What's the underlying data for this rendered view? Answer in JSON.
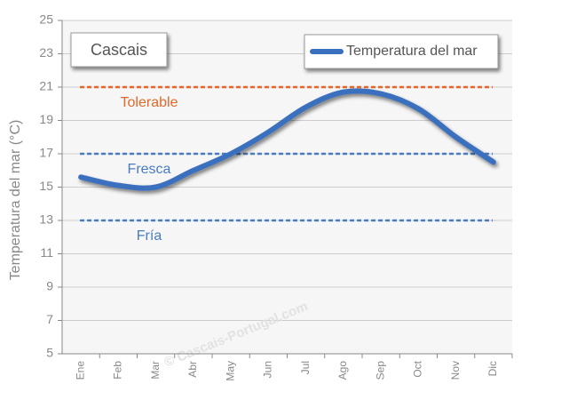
{
  "chart_data": {
    "type": "line",
    "title": "Cascais",
    "y_label": "Temperatura del mar (°C)",
    "watermark": "© Cascais-Portugal.com",
    "categories": [
      "Ene",
      "Feb",
      "Mar",
      "Abr",
      "May",
      "Jun",
      "Jul",
      "Ago",
      "Sep",
      "Oct",
      "Nov",
      "Dic"
    ],
    "series": [
      {
        "name": "Temperatura del mar",
        "color": "#3a6fbf",
        "values": [
          15.6,
          15.1,
          15.0,
          16.0,
          17.0,
          18.3,
          19.8,
          20.7,
          20.6,
          19.7,
          18.0,
          16.5
        ]
      }
    ],
    "reference_lines": [
      {
        "label": "Tolerable",
        "value": 21,
        "color": "#e0682a"
      },
      {
        "label": "Fresca",
        "value": 17,
        "color": "#4a7cc0"
      },
      {
        "label": "Fría",
        "value": 13,
        "color": "#4a7cc0"
      }
    ],
    "ylim": [
      5,
      25
    ],
    "yticks": [
      5,
      7,
      9,
      11,
      13,
      15,
      17,
      19,
      21,
      23,
      25
    ],
    "grid": true,
    "legend": "top-right"
  }
}
